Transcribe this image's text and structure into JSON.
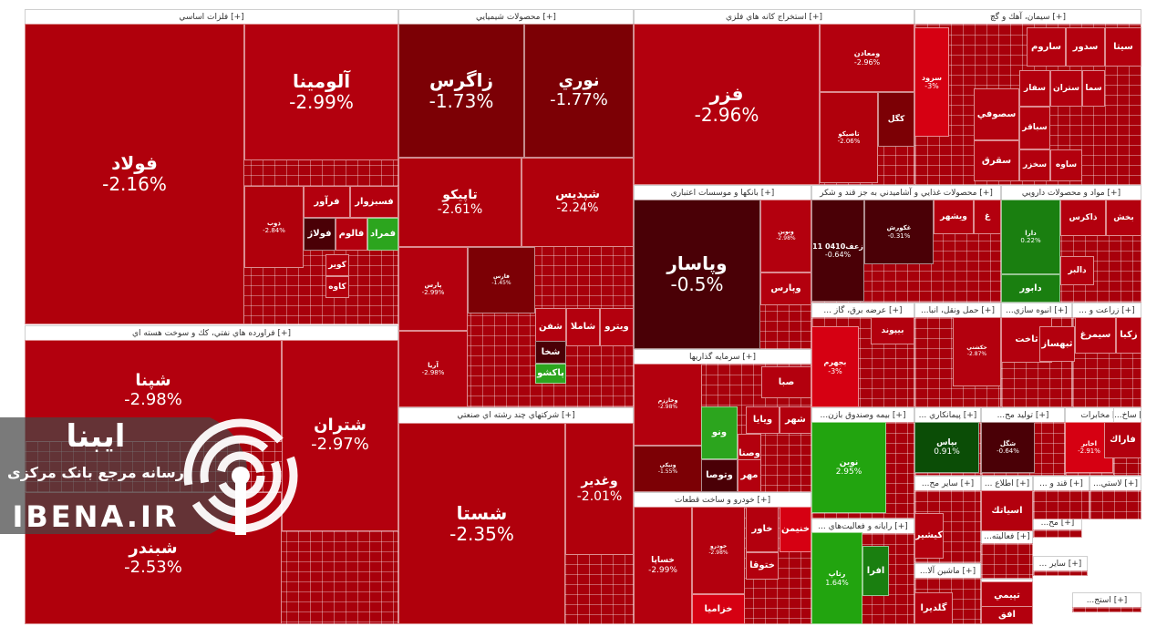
{
  "sections": [
    {
      "id": "felezat",
      "title": "فلزات اساسي [+]"
    },
    {
      "id": "naft",
      "title": "فراورده هاي نفتي، كك و سوخت هسته اي [+]"
    },
    {
      "id": "shimi",
      "title": "محصولات شيميايي [+]"
    },
    {
      "id": "chand",
      "title": "شركتهاي چند رشته اي صنعتي [+]"
    },
    {
      "id": "estekhraj",
      "title": "استخراج كانه هاي فلزي [+]"
    },
    {
      "id": "siman",
      "title": "سيمان، آهك و گچ [+]"
    },
    {
      "id": "bank",
      "title": "بانكها و موسسات اعتباري [+]"
    },
    {
      "id": "ghaza",
      "title": "محصولات غذايي و آشاميدني به جز قند و شكر [+]"
    },
    {
      "id": "daru",
      "title": "مواد و محصولات دارويي [+]"
    },
    {
      "id": "sarmaye",
      "title": "سرمايه گذاريها [+]"
    },
    {
      "id": "khodro",
      "title": "خودرو و ساخت قطعات [+]"
    },
    {
      "id": "barq",
      "title": "... عرضه برق، گاز [+]"
    },
    {
      "id": "hamlonaql",
      "title": "...حمل ونقل، انبا [+]"
    },
    {
      "id": "anbuhsazi",
      "title": "...انبوه سازي [+]"
    },
    {
      "id": "zeraat",
      "title": "... زراعت و [+]"
    },
    {
      "id": "bime",
      "title": "...بيمه وصندوق بازن [+]"
    },
    {
      "id": "peymankari",
      "title": "... پيمانكاري [+]"
    },
    {
      "id": "tolidmahs",
      "title": "...توليد مح [+]"
    },
    {
      "id": "mokhaberat",
      "title": "مخابرات [+]"
    },
    {
      "id": "sakh",
      "title": "...ساخ [+]"
    },
    {
      "id": "rayane",
      "title": "... رايانه و فعاليت‌هاي [+]"
    },
    {
      "id": "sayer",
      "title": "...ساير مح [+]"
    },
    {
      "id": "mashin",
      "title": "...ماشين آلا [+]"
    },
    {
      "id": "ettela",
      "title": "... اطلاع [+]"
    },
    {
      "id": "ghand",
      "title": "... قند و [+]"
    },
    {
      "id": "laastic",
      "title": "...لاستي [+]"
    },
    {
      "id": "faaliat",
      "title": "...فعاليته [+]"
    },
    {
      "id": "kharde",
      "title": "... خرده [+]"
    },
    {
      "id": "mah",
      "title": "...مح [+]"
    },
    {
      "id": "sayer2",
      "title": "... ساير [+]"
    },
    {
      "id": "rastaj",
      "title": "...استج [+]"
    }
  ],
  "tiles": [
    {
      "symbol": "فولاد",
      "pct": "-2.16%",
      "color": "#b0000c"
    },
    {
      "symbol": "آلومينا",
      "pct": "-2.99%",
      "color": "#b3000e"
    },
    {
      "symbol": "فزر",
      "pct": "-2.96%",
      "color": "#b3000e"
    },
    {
      "symbol": "زاگرس",
      "pct": "-1.73%",
      "color": "#7c0005"
    },
    {
      "symbol": "نوري",
      "pct": "-1.77%",
      "color": "#7c0005"
    },
    {
      "symbol": "تاپيكو",
      "pct": "-2.61%",
      "color": "#b0000c"
    },
    {
      "symbol": "شپديس",
      "pct": "-2.24%",
      "color": "#b0000c"
    },
    {
      "symbol": "شستا",
      "pct": "-2.35%",
      "color": "#b0000c"
    },
    {
      "symbol": "وغدير",
      "pct": "-2.01%",
      "color": "#b0000c"
    },
    {
      "symbol": "شپنا",
      "pct": "-2.98%",
      "color": "#b3000e"
    },
    {
      "symbol": "شتران",
      "pct": "-2.97%",
      "color": "#b3000e"
    },
    {
      "symbol": "شبندر",
      "pct": "-2.53%",
      "color": "#b0000c"
    },
    {
      "symbol": "وپاسار",
      "pct": "-0.5%",
      "color": "#4a0006"
    },
    {
      "symbol": "ومعادن",
      "pct": "-2.96%",
      "color": "#b3000e"
    },
    {
      "symbol": "كگل",
      "pct": "",
      "color": "#7c0005"
    },
    {
      "symbol": "تاصيكو",
      "pct": "-2.06%",
      "color": "#b0000c"
    },
    {
      "symbol": "فسبزوار",
      "pct": "",
      "color": "#b3000e"
    },
    {
      "symbol": "فرآور",
      "pct": "",
      "color": "#b3000e"
    },
    {
      "symbol": "فولاژ",
      "pct": "",
      "color": "#4a0006"
    },
    {
      "symbol": "فالوم",
      "pct": "",
      "color": "#b3000e"
    },
    {
      "symbol": "فمراد",
      "pct": "",
      "color": "#2ca51e"
    },
    {
      "symbol": "ذوب",
      "pct": "-2.84%",
      "color": "#b0000c"
    },
    {
      "symbol": "كاوه",
      "pct": "",
      "color": "#b3000e"
    },
    {
      "symbol": "كوير",
      "pct": "",
      "color": "#b3000e"
    },
    {
      "symbol": "پارس",
      "pct": "-2.99%",
      "color": "#b3000e"
    },
    {
      "symbol": "آريا",
      "pct": "-2.98%",
      "color": "#b3000e"
    },
    {
      "symbol": "فارس",
      "pct": "-1.45%",
      "color": "#7c0005"
    },
    {
      "symbol": "شفن",
      "pct": "",
      "color": "#b3000e"
    },
    {
      "symbol": "شاملا",
      "pct": "",
      "color": "#b3000e"
    },
    {
      "symbol": "ويترو",
      "pct": "",
      "color": "#b3000e"
    },
    {
      "symbol": "پاكشو",
      "pct": "",
      "color": "#2ca51e"
    },
    {
      "symbol": "شخا",
      "pct": "",
      "color": "#4a0006"
    },
    {
      "symbol": "سيتا",
      "pct": "",
      "color": "#b3000e"
    },
    {
      "symbol": "سدور",
      "pct": "",
      "color": "#b3000e"
    },
    {
      "symbol": "ساروم",
      "pct": "",
      "color": "#b3000e"
    },
    {
      "symbol": "سرود",
      "pct": "-3%",
      "color": "#d60012"
    },
    {
      "symbol": "سصوفي",
      "pct": "",
      "color": "#b3000e"
    },
    {
      "symbol": "سفار",
      "pct": "",
      "color": "#b3000e"
    },
    {
      "symbol": "ستران",
      "pct": "",
      "color": "#b3000e"
    },
    {
      "symbol": "سما",
      "pct": "",
      "color": "#b3000e"
    },
    {
      "symbol": "سباقر",
      "pct": "",
      "color": "#b3000e"
    },
    {
      "symbol": "سخزر",
      "pct": "",
      "color": "#b3000e"
    },
    {
      "symbol": "سقرق",
      "pct": "",
      "color": "#b3000e"
    },
    {
      "symbol": "ساوه",
      "pct": "",
      "color": "#b3000e"
    },
    {
      "symbol": "ونوين",
      "pct": "-2.98%",
      "color": "#b3000e"
    },
    {
      "symbol": "وپارس",
      "pct": "",
      "color": "#b3000e"
    },
    {
      "symbol": "صبا",
      "pct": "",
      "color": "#b3000e"
    },
    {
      "symbol": "وخارزم",
      "pct": "-2.98%",
      "color": "#b3000e"
    },
    {
      "symbol": "ونيكي",
      "pct": "-1.55%",
      "color": "#7c0005"
    },
    {
      "symbol": "ويايا",
      "pct": "",
      "color": "#b3000e"
    },
    {
      "symbol": "وتوصا",
      "pct": "",
      "color": "#4a0006"
    },
    {
      "symbol": "ونو",
      "pct": "",
      "color": "#2ca51e"
    },
    {
      "symbol": "وصنا",
      "pct": "",
      "color": "#b3000e"
    },
    {
      "symbol": "شهر",
      "pct": "",
      "color": "#b3000e"
    },
    {
      "symbol": "مهر",
      "pct": "",
      "color": "#b3000e"
    },
    {
      "symbol": "خساپا",
      "pct": "-2.99%",
      "color": "#b3000e"
    },
    {
      "symbol": "خودرو",
      "pct": "-2.98%",
      "color": "#b3000e"
    },
    {
      "symbol": "خاور",
      "pct": "",
      "color": "#b3000e"
    },
    {
      "symbol": "خنيمن",
      "pct": "",
      "color": "#d60012"
    },
    {
      "symbol": "ختوقا",
      "pct": "",
      "color": "#b3000e"
    },
    {
      "symbol": "خزاميا",
      "pct": "",
      "color": "#d60012"
    },
    {
      "symbol": "زعف0410 11",
      "pct": "-0.64%",
      "color": "#4a0006"
    },
    {
      "symbol": "غكورش",
      "pct": "-0.31%",
      "color": "#4a0006"
    },
    {
      "symbol": "ويشهر",
      "pct": "",
      "color": "#b3000e"
    },
    {
      "symbol": "غ",
      "pct": "",
      "color": "#b3000e"
    },
    {
      "symbol": "بخش",
      "pct": "",
      "color": "#b3000e"
    },
    {
      "symbol": "ذاكرس",
      "pct": "",
      "color": "#b3000e"
    },
    {
      "symbol": "دالبر",
      "pct": "",
      "color": "#b3000e"
    },
    {
      "symbol": "دابور",
      "pct": "",
      "color": "#1a7f10"
    },
    {
      "symbol": "دارا",
      "pct": "0.22%",
      "color": "#1a7f10"
    },
    {
      "symbol": "بجهرم",
      "pct": "-3%",
      "color": "#d60012"
    },
    {
      "symbol": "بيپوند",
      "pct": "",
      "color": "#b3000e"
    },
    {
      "symbol": "حكشتي",
      "pct": "-2.87%",
      "color": "#b3000e"
    },
    {
      "symbol": "ثاخت",
      "pct": "",
      "color": "#b3000e"
    },
    {
      "symbol": "ثبهساز",
      "pct": "",
      "color": "#b3000e"
    },
    {
      "symbol": "زكبا",
      "pct": "",
      "color": "#b3000e"
    },
    {
      "symbol": "سيمرغ",
      "pct": "",
      "color": "#b3000e"
    },
    {
      "symbol": "نوين",
      "pct": "2.95%",
      "color": "#22a40f"
    },
    {
      "symbol": "بپاس",
      "pct": "0.91%",
      "color": "#0b4d06"
    },
    {
      "symbol": "شگل",
      "pct": "-0.64%",
      "color": "#4a0006"
    },
    {
      "symbol": "اخابر",
      "pct": "-2.91%",
      "color": "#d60012"
    },
    {
      "symbol": "فاراك",
      "pct": "",
      "color": "#b3000e"
    },
    {
      "symbol": "رتاپ",
      "pct": "1.64%",
      "color": "#22a40f"
    },
    {
      "symbol": "افرا",
      "pct": "",
      "color": "#1a7f10"
    },
    {
      "symbol": "كيشير",
      "pct": "",
      "color": "#b3000e"
    },
    {
      "symbol": "اسياتك",
      "pct": "",
      "color": "#b3000e"
    },
    {
      "symbol": "گلديرا",
      "pct": "",
      "color": "#b3000e"
    },
    {
      "symbol": "تپيمي",
      "pct": "",
      "color": "#b3000e"
    },
    {
      "symbol": "افق",
      "pct": "",
      "color": "#b3000e"
    }
  ],
  "watermark": {
    "brand_fa": "ایبنا",
    "tagline_fa": "رسانه مرجع بانک مرکزی",
    "brand_en": "IBENA.IR"
  },
  "chart_data": {
    "type": "heatmap",
    "title": "",
    "color_scale": {
      "negative": "#b3000e",
      "strong_negative": "#4a0006",
      "positive": "#22a40f"
    },
    "groups": [
      {
        "name": "فلزات اساسي",
        "items": [
          {
            "symbol": "فولاد",
            "change": -2.16
          },
          {
            "symbol": "آلومينا",
            "change": -2.99
          },
          {
            "symbol": "ذوب",
            "change": -2.84
          },
          {
            "symbol": "فسبزوار",
            "change": null
          },
          {
            "symbol": "فرآور",
            "change": null
          },
          {
            "symbol": "فولاژ",
            "change": null
          },
          {
            "symbol": "فالوم",
            "change": null
          },
          {
            "symbol": "فمراد",
            "change": null
          },
          {
            "symbol": "كوير",
            "change": null
          },
          {
            "symbol": "كاوه",
            "change": null
          }
        ]
      },
      {
        "name": "فراورده هاي نفتي، كك و سوخت هسته اي",
        "items": [
          {
            "symbol": "شپنا",
            "change": -2.98
          },
          {
            "symbol": "شتران",
            "change": -2.97
          },
          {
            "symbol": "شبندر",
            "change": -2.53
          }
        ]
      },
      {
        "name": "محصولات شيميايي",
        "items": [
          {
            "symbol": "زاگرس",
            "change": -1.73
          },
          {
            "symbol": "نوري",
            "change": -1.77
          },
          {
            "symbol": "تاپيكو",
            "change": -2.61
          },
          {
            "symbol": "شپديس",
            "change": -2.24
          },
          {
            "symbol": "پارس",
            "change": -2.99
          },
          {
            "symbol": "آريا",
            "change": -2.98
          },
          {
            "symbol": "فارس",
            "change": -1.45
          }
        ]
      },
      {
        "name": "شركتهاي چند رشته اي صنعتي",
        "items": [
          {
            "symbol": "شستا",
            "change": -2.35
          },
          {
            "symbol": "وغدير",
            "change": -2.01
          }
        ]
      },
      {
        "name": "استخراج كانه هاي فلزي",
        "items": [
          {
            "symbol": "فزر",
            "change": -2.96
          },
          {
            "symbol": "ومعادن",
            "change": -2.96
          },
          {
            "symbol": "تاصيكو",
            "change": -2.06
          }
        ]
      },
      {
        "name": "بانكها و موسسات اعتباري",
        "items": [
          {
            "symbol": "وپاسار",
            "change": -0.5
          },
          {
            "symbol": "ونوين",
            "change": -2.98
          }
        ]
      },
      {
        "name": "سيمان، آهك و گچ",
        "items": [
          {
            "symbol": "سرود",
            "change": -3.0
          }
        ]
      },
      {
        "name": "سرمايه گذاريها",
        "items": [
          {
            "symbol": "وخارزم",
            "change": -2.98
          },
          {
            "symbol": "ونيكي",
            "change": -1.55
          }
        ]
      },
      {
        "name": "خودرو و ساخت قطعات",
        "items": [
          {
            "symbol": "خساپا",
            "change": -2.99
          },
          {
            "symbol": "خودرو",
            "change": -2.98
          }
        ]
      },
      {
        "name": "محصولات غذايي و آشاميدني به جز قند و شكر",
        "items": [
          {
            "symbol": "زعف0410 11",
            "change": -0.64
          },
          {
            "symbol": "غكورش",
            "change": -0.31
          }
        ]
      },
      {
        "name": "مواد و محصولات دارويي",
        "items": [
          {
            "symbol": "دارا",
            "change": 0.22
          }
        ]
      },
      {
        "name": "عرضه برق، گاز",
        "items": [
          {
            "symbol": "بجهرم",
            "change": -3.0
          }
        ]
      },
      {
        "name": "حمل ونقل، انبا",
        "items": [
          {
            "symbol": "حكشتي",
            "change": -2.87
          }
        ]
      },
      {
        "name": "بيمه وصندوق بازن",
        "items": [
          {
            "symbol": "نوين",
            "change": 2.95
          }
        ]
      },
      {
        "name": "پيمانكاري",
        "items": [
          {
            "symbol": "بپاس",
            "change": 0.91
          }
        ]
      },
      {
        "name": "توليد محصولات",
        "items": [
          {
            "symbol": "شگل",
            "change": -0.64
          }
        ]
      },
      {
        "name": "مخابرات",
        "items": [
          {
            "symbol": "اخابر",
            "change": -2.91
          }
        ]
      },
      {
        "name": "رايانه و فعاليت‌هاي",
        "items": [
          {
            "symbol": "رتاپ",
            "change": 1.64
          }
        ]
      }
    ]
  }
}
